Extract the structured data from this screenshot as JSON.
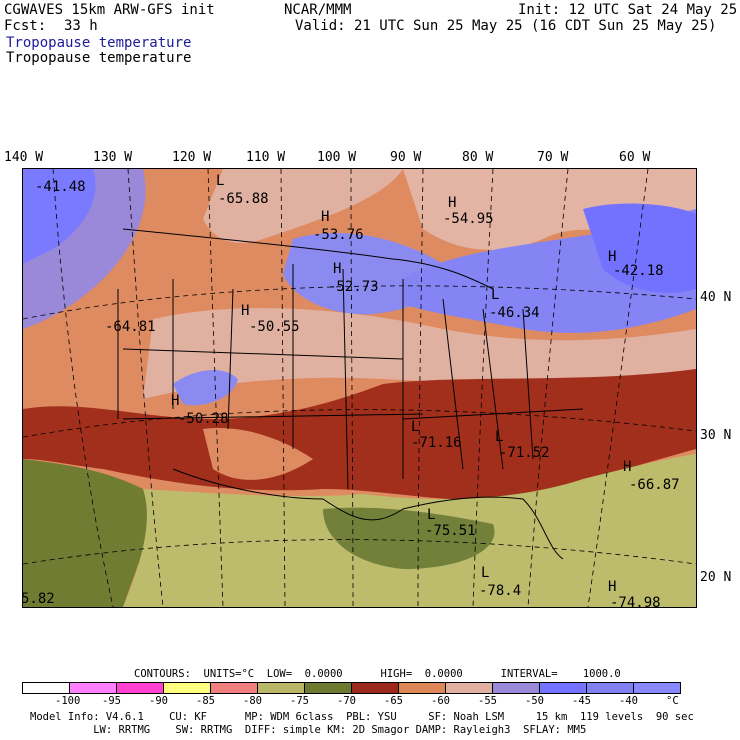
{
  "header": {
    "model": "CGWAVES 15km ARW-GFS init",
    "fcst_label": "Fcst:",
    "fcst_value": "33 h",
    "center": "NCAR/MMM",
    "init": "Init: 12 UTC Sat 24 May 25",
    "valid": "Valid: 21 UTC Sun 25 May 25 (16 CDT Sun 25 May 25)",
    "field1": "Tropopause temperature",
    "field2": "Tropopause temperature"
  },
  "longitudes": [
    "140 W",
    "130 W",
    "120 W",
    "110 W",
    "100 W",
    "90 W",
    "80 W",
    "70 W",
    "60 W"
  ],
  "latitudes": [
    "40 N",
    "30 N",
    "20 N"
  ],
  "map_labels": [
    {
      "sym": "",
      "val": "-41.48"
    },
    {
      "sym": "L",
      "val": "-65.88"
    },
    {
      "sym": "H",
      "val": "-53.76"
    },
    {
      "sym": "H",
      "val": "-54.95"
    },
    {
      "sym": "H",
      "val": "-42.18"
    },
    {
      "sym": "H",
      "val": "-52.73"
    },
    {
      "sym": "",
      "val": "-64.81"
    },
    {
      "sym": "H",
      "val": "-50.55"
    },
    {
      "sym": "L",
      "val": "-46.34"
    },
    {
      "sym": "H",
      "val": "-50.28"
    },
    {
      "sym": "L",
      "val": "-71.16"
    },
    {
      "sym": "L",
      "val": "-71.52"
    },
    {
      "sym": "H",
      "val": "-66.87"
    },
    {
      "sym": "L",
      "val": "-75.51"
    },
    {
      "sym": "L",
      "val": "-78.4"
    },
    {
      "sym": "H",
      "val": "-74.98"
    },
    {
      "sym": "",
      "val": "5.82"
    }
  ],
  "contours": {
    "text": "CONTOURS:  UNITS=°C  LOW=  0.0000      HIGH=  0.0000      INTERVAL=    1000.0"
  },
  "colorbar": {
    "colors": [
      "#ffffff",
      "#ff80ff",
      "#ff40d0",
      "#ffff80",
      "#f08080",
      "#b8b868",
      "#6e7a30",
      "#9c2a1a",
      "#e0875a",
      "#e0b0a0",
      "#9a88d8",
      "#7474ff",
      "#8080f0",
      "#8888ff"
    ],
    "labels": [
      "-100",
      "-95",
      "-90",
      "-85",
      "-80",
      "-75",
      "-70",
      "-65",
      "-60",
      "-55",
      "-50",
      "-45",
      "-40",
      "°C"
    ]
  },
  "footer": {
    "line1": "Model Info: V4.6.1    CU: KF      MP: WDM 6class  PBL: YSU     SF: Noah LSM     15 km  119 levels  90 sec",
    "line2": "          LW: RRTMG    SW: RRTMG  DIFF: simple KM: 2D Smagor DAMP: Rayleigh3  SFLAY: MM5"
  }
}
